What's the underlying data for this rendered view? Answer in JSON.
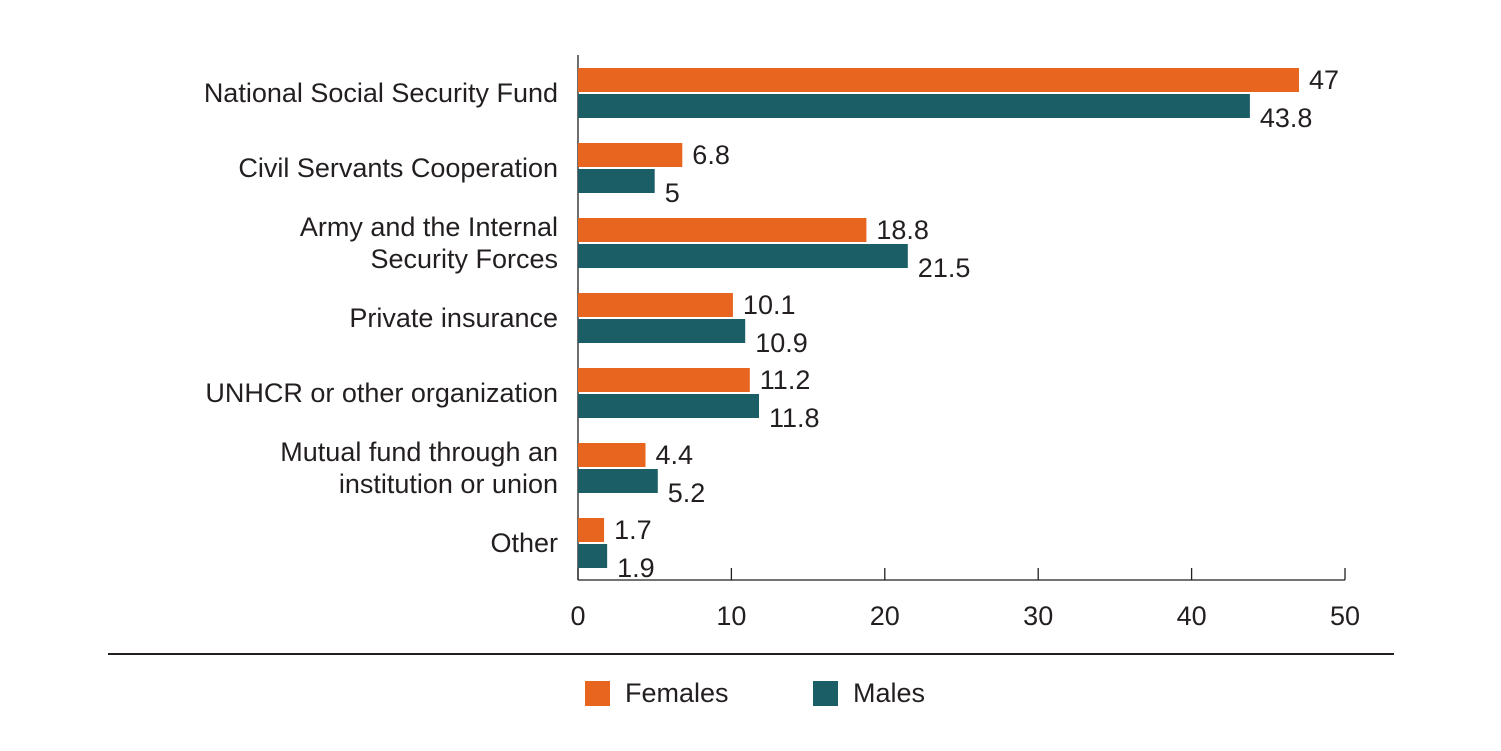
{
  "chart_data": {
    "type": "bar",
    "orientation": "horizontal",
    "categories": [
      [
        "National Social Security Fund"
      ],
      [
        "Civil Servants Cooperation"
      ],
      [
        "Army and the Internal",
        "Security Forces"
      ],
      [
        "Private insurance"
      ],
      [
        "UNHCR or other organization"
      ],
      [
        "Mutual fund through an",
        "institution or union"
      ],
      [
        "Other"
      ]
    ],
    "series": [
      {
        "name": "Females",
        "color": "#e8651f",
        "values": [
          47,
          6.8,
          18.8,
          10.1,
          11.2,
          4.4,
          1.7
        ],
        "labels": [
          "47",
          "6.8",
          "18.8",
          "10.1",
          "11.2",
          "4.4",
          "1.7"
        ]
      },
      {
        "name": "Males",
        "color": "#1b5e66",
        "values": [
          43.8,
          5,
          21.5,
          10.9,
          11.8,
          5.2,
          1.9
        ],
        "labels": [
          "43.8",
          "5",
          "21.5",
          "10.9",
          "11.8",
          "5.2",
          "1.9"
        ]
      }
    ],
    "xlim": [
      0,
      50
    ],
    "xticks": [
      "0",
      "10",
      "20",
      "30",
      "40",
      "50"
    ],
    "grid": false,
    "legend_position": "bottom"
  }
}
